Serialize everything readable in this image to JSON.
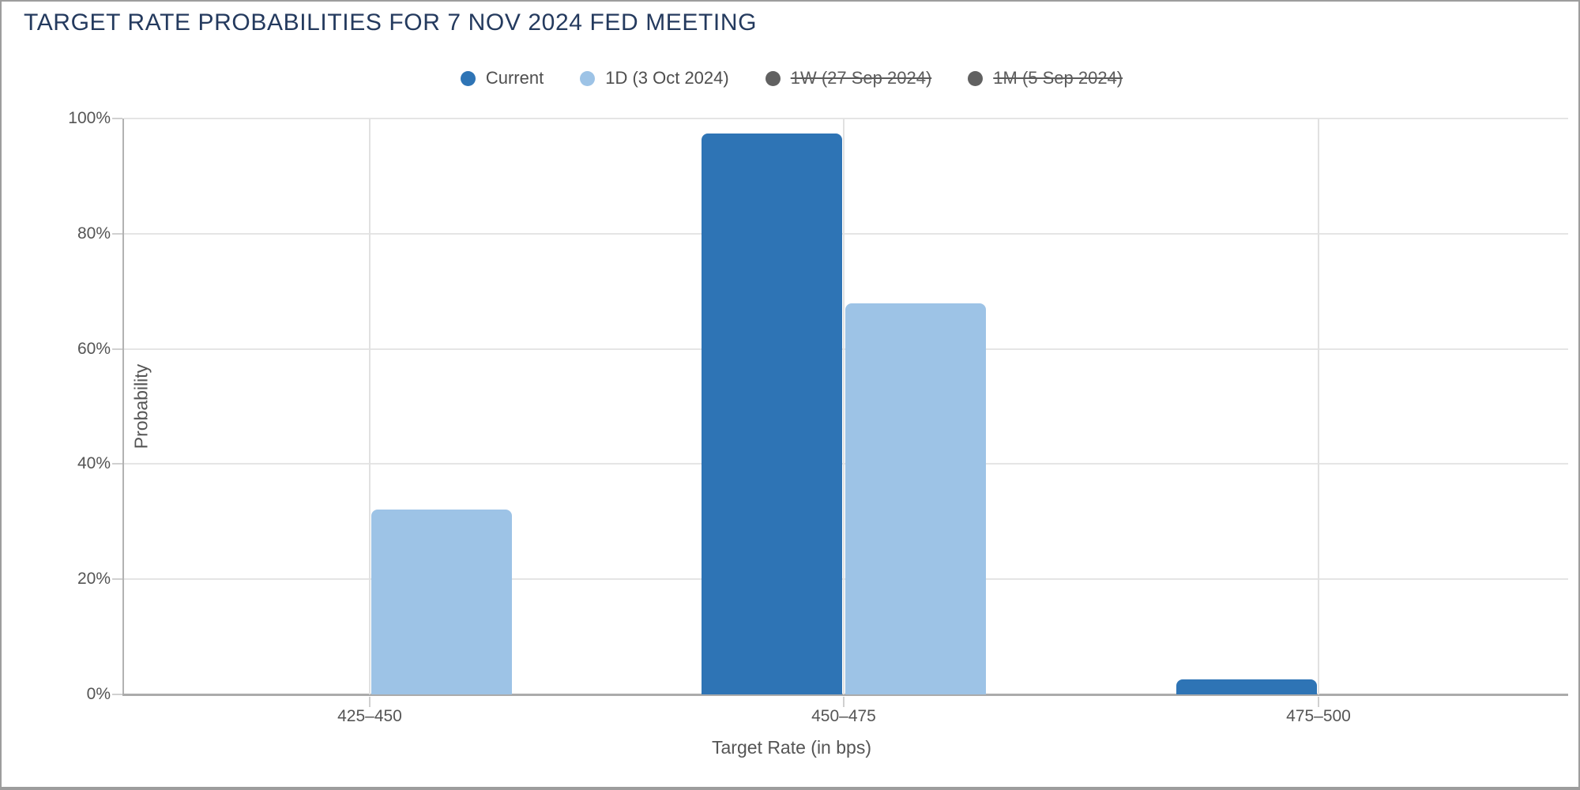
{
  "title": "TARGET RATE PROBABILITIES FOR 7 NOV 2024 FED MEETING",
  "colors": {
    "title_text": "#243a5e",
    "axis_text": "#555555",
    "legend_text": "#4e4e4e",
    "current_series": "#2e74b5",
    "one_day_series": "#9dc3e6",
    "disabled_series": "#616161",
    "gridline": "#e5e5e5",
    "axis_line": "#ababab",
    "window_border": "#9d9d9d"
  },
  "legend": {
    "items": [
      {
        "id": "current",
        "label": "Current",
        "color": "#2e74b5",
        "active": true
      },
      {
        "id": "1d",
        "label": "1D (3 Oct 2024)",
        "color": "#9dc3e6",
        "active": true
      },
      {
        "id": "1w",
        "label": "1W (27 Sep 2024)",
        "color": "#616161",
        "active": false
      },
      {
        "id": "1m",
        "label": "1M (5 Sep 2024)",
        "color": "#616161",
        "active": false
      }
    ]
  },
  "chart_data": {
    "type": "bar",
    "title": "TARGET RATE PROBABILITIES FOR 7 NOV 2024 FED MEETING",
    "categories": [
      "425–450",
      "450–475",
      "475–500"
    ],
    "series": [
      {
        "name": "Current",
        "color": "#2e74b5",
        "values": [
          0,
          97.4,
          2.6
        ],
        "visible": true
      },
      {
        "name": "1D (3 Oct 2024)",
        "color": "#9dc3e6",
        "values": [
          32.1,
          67.9,
          0
        ],
        "visible": true
      },
      {
        "name": "1W (27 Sep 2024)",
        "color": "#616161",
        "visible": false
      },
      {
        "name": "1M (5 Sep 2024)",
        "color": "#616161",
        "visible": false
      }
    ],
    "xlabel": "Target Rate (in bps)",
    "ylabel": "Probability",
    "ylim": [
      0,
      100
    ],
    "ytick_step": 20,
    "ytick_labels": [
      "0%",
      "20%",
      "40%",
      "60%",
      "80%",
      "100%"
    ],
    "grid": true,
    "legend_position": "top-center"
  }
}
